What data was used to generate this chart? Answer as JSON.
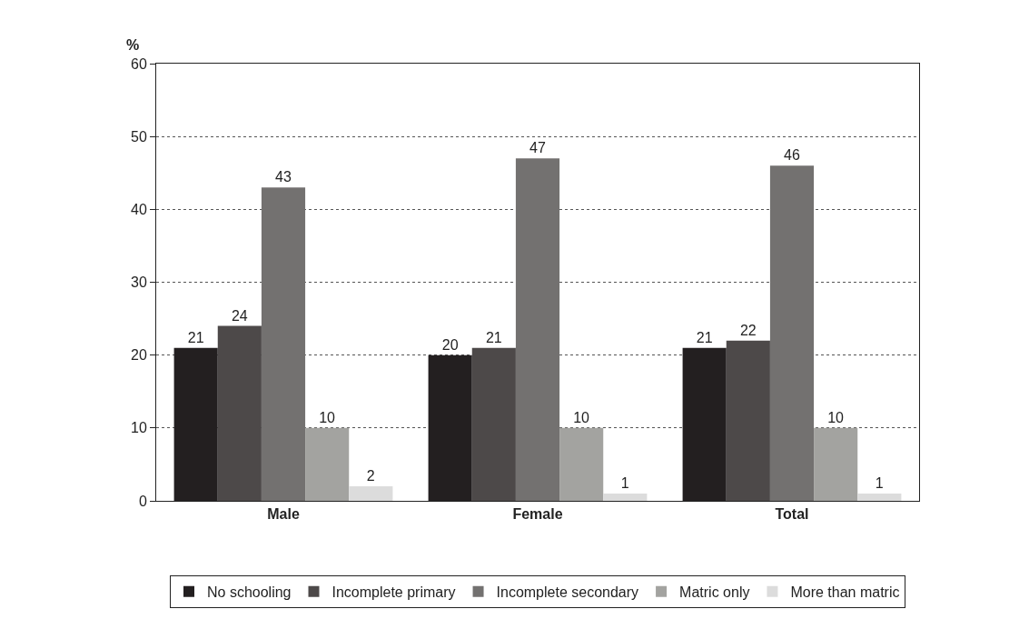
{
  "chart_data": {
    "type": "bar",
    "ylabel": "%",
    "categories": [
      "Male",
      "Female",
      "Total"
    ],
    "series": [
      {
        "name": "No schooling",
        "color": "#231f20",
        "values": [
          21,
          20,
          21
        ]
      },
      {
        "name": "Incomplete primary",
        "color": "#4d4949",
        "values": [
          24,
          21,
          22
        ]
      },
      {
        "name": "Incomplete secondary",
        "color": "#737170",
        "values": [
          43,
          47,
          46
        ]
      },
      {
        "name": "Matric only",
        "color": "#a3a3a0",
        "values": [
          10,
          10,
          10
        ]
      },
      {
        "name": "More than matric",
        "color": "#dcdcdc",
        "values": [
          2,
          1,
          1
        ]
      }
    ],
    "ylim": [
      0,
      60
    ],
    "yticks": [
      0,
      10,
      20,
      30,
      40,
      50,
      60
    ],
    "grid": "y",
    "legend": "bottom",
    "data_labels": true
  }
}
